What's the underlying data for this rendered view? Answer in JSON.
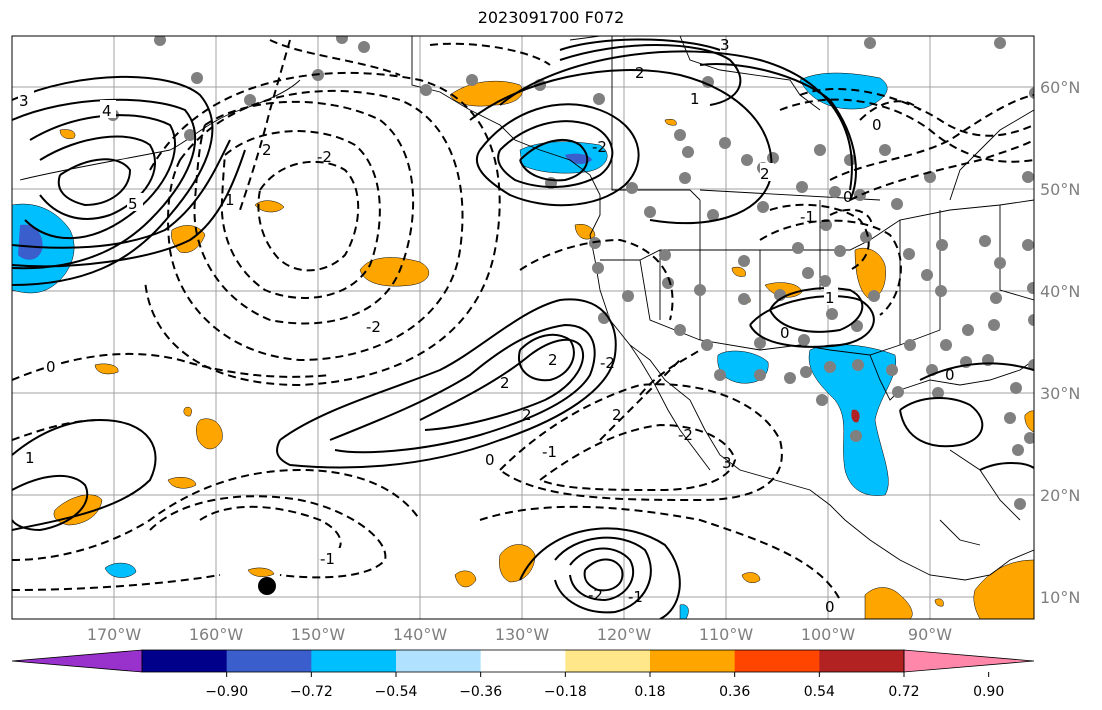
{
  "title": "2023091700 F072",
  "map": {
    "projection": "plate-carree",
    "lon_range": [
      -180,
      -80
    ],
    "lat_range": [
      8,
      65
    ],
    "gridlines": true,
    "lat_labels": [
      "60°N",
      "50°N",
      "40°N",
      "30°N",
      "20°N",
      "10°N"
    ],
    "lon_labels": [
      "170°W",
      "160°W",
      "150°W",
      "140°W",
      "130°W",
      "120°W",
      "110°W",
      "100°W",
      "90°W"
    ],
    "contour_style": {
      "positive": "solid black",
      "negative": "dashed black"
    },
    "contour_labels": [
      "3",
      "4",
      "5",
      "2",
      "1",
      "-2",
      "2",
      "3",
      "0",
      "-2",
      "0",
      "2",
      "2",
      "-2",
      "0",
      "-1",
      "1",
      "2",
      "-1",
      "-2",
      "0",
      "1",
      "0",
      "-2",
      "-1",
      "0",
      "2",
      "1",
      "0",
      "-1",
      "2",
      "3",
      "-2"
    ],
    "station_marker_color": "#808080",
    "marker_black_dot": "black"
  },
  "colorbar": {
    "colors": [
      "#9932cc",
      "#00008b",
      "#3a5fcd",
      "#00bfff",
      "#b0e2ff",
      "#ffffff",
      "#ffe78a",
      "#ffa500",
      "#ff4500",
      "#b22222",
      "#ff88aa"
    ],
    "tick_labels": [
      "−0.90",
      "−0.72",
      "−0.54",
      "−0.36",
      "−0.18",
      "0.18",
      "0.36",
      "0.54",
      "0.72",
      "0.90"
    ],
    "extend": "both"
  }
}
